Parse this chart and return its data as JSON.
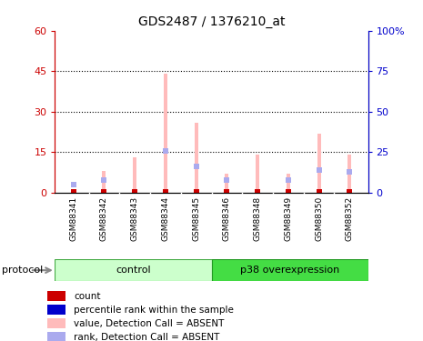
{
  "title": "GDS2487 / 1376210_at",
  "samples": [
    "GSM88341",
    "GSM88342",
    "GSM88343",
    "GSM88344",
    "GSM88345",
    "GSM88346",
    "GSM88348",
    "GSM88349",
    "GSM88350",
    "GSM88352"
  ],
  "pink_values": [
    0.5,
    8,
    13,
    44,
    26,
    7,
    14,
    7,
    22,
    14
  ],
  "blue_rank_values": [
    5,
    8,
    0,
    26,
    16,
    8,
    0,
    8,
    14,
    13
  ],
  "ylim_left": [
    0,
    60
  ],
  "ylim_right": [
    0,
    100
  ],
  "yticks_left": [
    0,
    15,
    30,
    45,
    60
  ],
  "ytick_labels_left": [
    "0",
    "15",
    "30",
    "45",
    "60"
  ],
  "yticks_right": [
    0,
    25,
    50,
    75,
    100
  ],
  "ytick_labels_right": [
    "0",
    "25",
    "50",
    "75",
    "100%"
  ],
  "control_color_light": "#ccffcc",
  "control_color": "#aaffaa",
  "p38_color": "#44dd44",
  "gray_color": "#cccccc",
  "pink_color": "#ffbbbb",
  "blue_color": "#aaaaee",
  "red_color": "#cc0000",
  "dark_blue_color": "#0000cc",
  "plot_bg_color": "#ffffff",
  "bar_width": 0.12,
  "blue_marker_size": 5,
  "red_marker_size": 4,
  "legend_items": [
    {
      "label": "count",
      "color": "#cc0000"
    },
    {
      "label": "percentile rank within the sample",
      "color": "#0000cc"
    },
    {
      "label": "value, Detection Call = ABSENT",
      "color": "#ffbbbb"
    },
    {
      "label": "rank, Detection Call = ABSENT",
      "color": "#aaaaee"
    }
  ]
}
